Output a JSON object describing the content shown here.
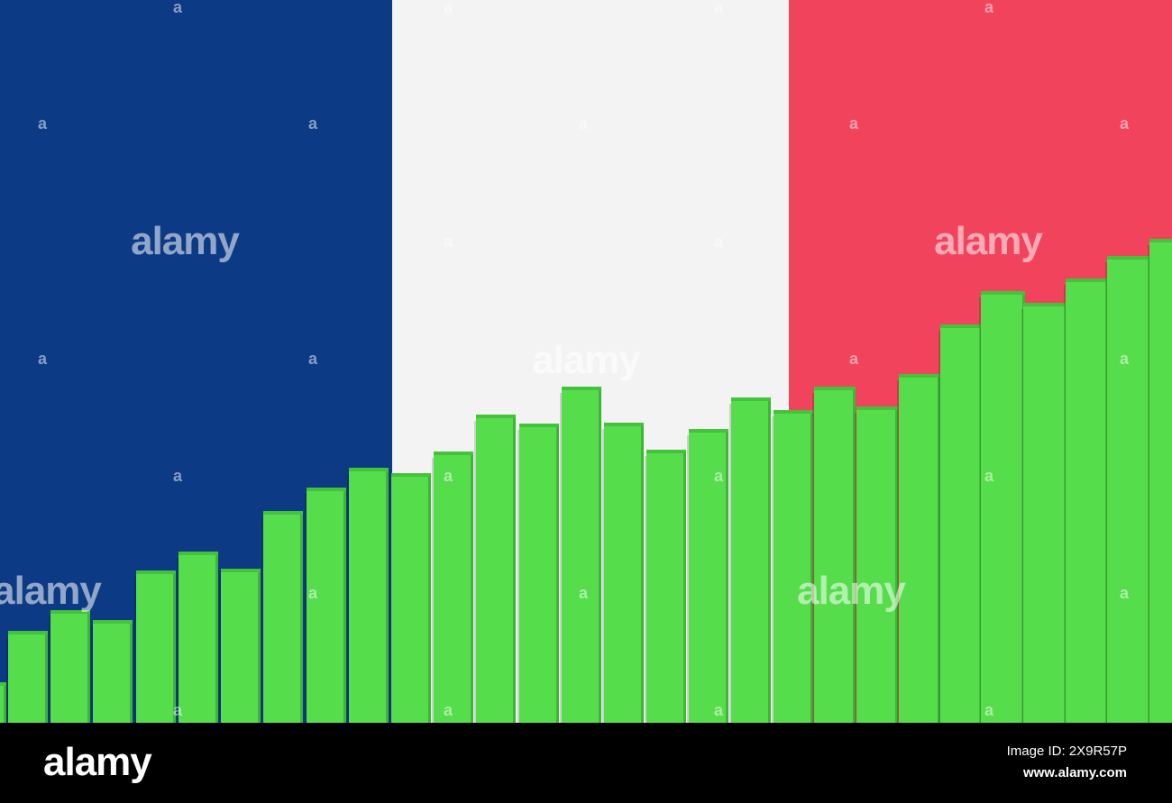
{
  "watermarks": [
    "alamy",
    "alamy",
    "alamy",
    "alamy",
    "alamy"
  ],
  "small_marks": [
    "a",
    "a",
    "a",
    "a",
    "a",
    "a",
    "a",
    "a",
    "a",
    "a",
    "a",
    "a",
    "a",
    "a",
    "a",
    "a",
    "a",
    "a",
    "a",
    "a",
    "a",
    "a",
    "a",
    "a",
    "a",
    "a"
  ],
  "footer": {
    "logo": "alamy",
    "image_id": "Image ID: 2X9R57P",
    "url": "www.alamy.com"
  }
}
